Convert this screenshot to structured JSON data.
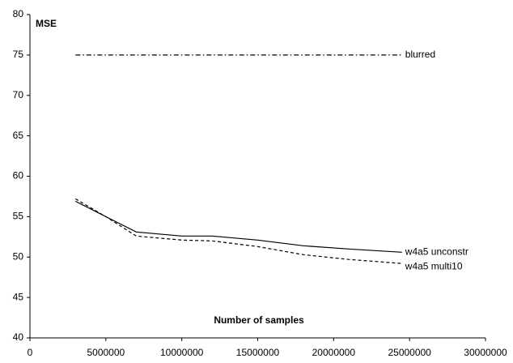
{
  "chart_data": {
    "type": "line",
    "y_label": "MSE",
    "x_label": "Number of samples",
    "x": [
      3000000,
      5000000,
      7000000,
      10000000,
      12000000,
      15000000,
      18000000,
      21000000,
      24500000
    ],
    "series": [
      {
        "name": "blurred",
        "color": "#000000",
        "style": "dashdot",
        "values": [
          75,
          75,
          75,
          75,
          75,
          75,
          75,
          75,
          75
        ]
      },
      {
        "name": "w4a5 unconstr",
        "color": "#000000",
        "style": "solid",
        "values": [
          56.9,
          55.0,
          53.1,
          52.6,
          52.6,
          52.1,
          51.4,
          51.0,
          50.6
        ]
      },
      {
        "name": "w4a5 multi10",
        "color": "#000000",
        "style": "dashed",
        "values": [
          57.2,
          55.0,
          52.6,
          52.1,
          52.0,
          51.3,
          50.3,
          49.7,
          49.2
        ]
      }
    ],
    "xlim": [
      0,
      30000000
    ],
    "xticks": [
      0,
      5000000,
      10000000,
      15000000,
      20000000,
      25000000,
      30000000
    ],
    "ylim": [
      40,
      80
    ],
    "yticks": [
      40,
      45,
      50,
      55,
      60,
      65,
      70,
      75,
      80
    ]
  }
}
